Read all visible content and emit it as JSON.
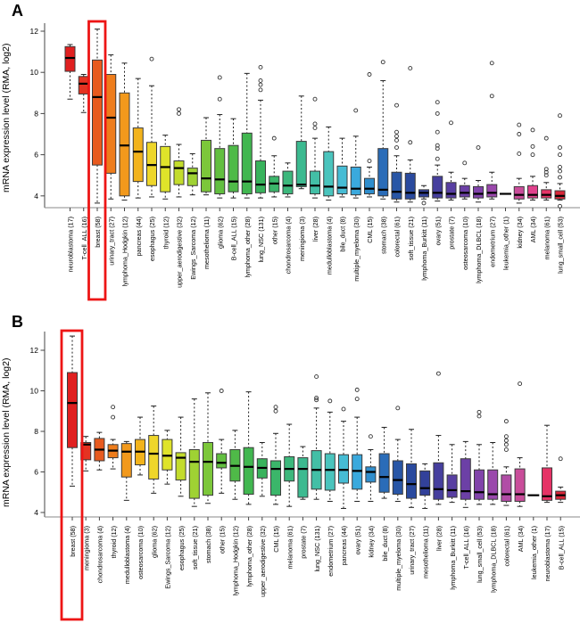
{
  "highlight_color": "#ed1515",
  "palette": [
    "#e02020",
    "#e43322",
    "#e85a1e",
    "#ee7d1c",
    "#f2991c",
    "#f2b31c",
    "#eed62a",
    "#dfe32a",
    "#c3dc2c",
    "#9fd233",
    "#7cc73a",
    "#62bf40",
    "#4fba48",
    "#41b750",
    "#38b35c",
    "#3bb66a",
    "#3cb87c",
    "#3cba90",
    "#43bfa6",
    "#4ac4bd",
    "#46bcd4",
    "#3aa9dd",
    "#2f8ecd",
    "#2a6cb8",
    "#2856a6",
    "#2a4a9e",
    "#32419a",
    "#463f9e",
    "#583fa2",
    "#6c40a6",
    "#8143aa",
    "#9a48ac",
    "#b14da6",
    "#c94d9a",
    "#e0418c",
    "#e53366",
    "#d92638"
  ],
  "chart_data": [
    {
      "type": "boxplot",
      "panel_label": "A",
      "title": "",
      "ylabel": "mRNA expression level (RMA, log2)",
      "xlabel": "",
      "yticks": [
        4,
        6,
        8,
        10,
        12
      ],
      "ylim": [
        3.4,
        12.7
      ],
      "grid": false,
      "legend": "none",
      "highlighted_category": "breast (58)",
      "categories": [
        "neuroblastoma (17)",
        "T-cell_ALL (16)",
        "breast (58)",
        "urinary_tract (27)",
        "lymphoma_Hodgkin (12)",
        "pancreas (44)",
        "esophagus (25)",
        "thyroid (12)",
        "upper_aerodigestive (32)",
        "Ewings_Sarcoma (12)",
        "mesothelioma (11)",
        "glioma (62)",
        "B-cell_ALL (15)",
        "lymphoma_other (28)",
        "lung_NSC (131)",
        "other (15)",
        "chondrosarcoma (4)",
        "meningioma (3)",
        "liver (28)",
        "medulloblastoma (4)",
        "bile_duct (8)",
        "multiple_myeloma (30)",
        "CML (15)",
        "stomach (38)",
        "colorectal (61)",
        "soft_tissue (21)",
        "lymphoma_Burkitt (11)",
        "ovary (51)",
        "prostate (7)",
        "osteosarcoma (10)",
        "lymphoma_DLBCL (18)",
        "endometrium (27)",
        "leukemia_other (1)",
        "kidney (34)",
        "AML (34)",
        "melanoma (61)",
        "lung_small_cell (53)"
      ],
      "boxes": [
        {
          "lo": 8.7,
          "q1": 10.05,
          "med": 10.7,
          "q3": 11.25,
          "hi": 11.35,
          "outliers": []
        },
        {
          "lo": 8.05,
          "q1": 8.95,
          "med": 9.45,
          "q3": 9.8,
          "hi": 9.9,
          "outliers": []
        },
        {
          "lo": 3.65,
          "q1": 5.5,
          "med": 8.8,
          "q3": 10.6,
          "hi": 12.1,
          "outliers": []
        },
        {
          "lo": 3.85,
          "q1": 5.1,
          "med": 7.8,
          "q3": 9.9,
          "hi": 10.85,
          "outliers": []
        },
        {
          "lo": 3.8,
          "q1": 4.0,
          "med": 6.45,
          "q3": 9.0,
          "hi": 10.45,
          "outliers": []
        },
        {
          "lo": 3.9,
          "q1": 4.7,
          "med": 6.15,
          "q3": 7.3,
          "hi": 9.7,
          "outliers": []
        },
        {
          "lo": 3.95,
          "q1": 4.5,
          "med": 5.5,
          "q3": 6.6,
          "hi": 9.35,
          "outliers": [
            10.65
          ]
        },
        {
          "lo": 3.85,
          "q1": 4.2,
          "med": 5.4,
          "q3": 6.4,
          "hi": 6.95,
          "outliers": []
        },
        {
          "lo": 3.95,
          "q1": 4.55,
          "med": 5.35,
          "q3": 5.7,
          "hi": 6.5,
          "outliers": [
            8.2,
            8.0
          ]
        },
        {
          "lo": 4.05,
          "q1": 4.5,
          "med": 5.1,
          "q3": 5.35,
          "hi": 6.05,
          "outliers": []
        },
        {
          "lo": 4.05,
          "q1": 4.2,
          "med": 4.85,
          "q3": 6.7,
          "hi": 7.8,
          "outliers": []
        },
        {
          "lo": 3.9,
          "q1": 4.1,
          "med": 4.8,
          "q3": 6.3,
          "hi": 7.95,
          "outliers": [
            9.75,
            8.7
          ]
        },
        {
          "lo": 3.9,
          "q1": 4.2,
          "med": 4.7,
          "q3": 6.45,
          "hi": 7.75,
          "outliers": []
        },
        {
          "lo": 3.9,
          "q1": 4.1,
          "med": 4.7,
          "q3": 7.05,
          "hi": 9.95,
          "outliers": []
        },
        {
          "lo": 3.9,
          "q1": 4.15,
          "med": 4.55,
          "q3": 5.7,
          "hi": 8.65,
          "outliers": [
            10.25,
            9.6,
            9.4,
            9.15
          ]
        },
        {
          "lo": 3.95,
          "q1": 4.2,
          "med": 4.6,
          "q3": 4.95,
          "hi": 5.95,
          "outliers": [
            6.8
          ]
        },
        {
          "lo": 3.95,
          "q1": 4.1,
          "med": 4.5,
          "q3": 5.2,
          "hi": 5.6,
          "outliers": []
        },
        {
          "lo": 4.35,
          "q1": 4.45,
          "med": 4.55,
          "q3": 6.65,
          "hi": 8.85,
          "outliers": []
        },
        {
          "lo": 3.9,
          "q1": 4.1,
          "med": 4.5,
          "q3": 5.2,
          "hi": 6.8,
          "outliers": [
            8.7,
            7.5,
            7.3
          ]
        },
        {
          "lo": 3.8,
          "q1": 4.0,
          "med": 4.45,
          "q3": 6.15,
          "hi": 7.35,
          "outliers": []
        },
        {
          "lo": 3.95,
          "q1": 4.1,
          "med": 4.4,
          "q3": 5.45,
          "hi": 6.8,
          "outliers": []
        },
        {
          "lo": 3.9,
          "q1": 4.05,
          "med": 4.35,
          "q3": 5.4,
          "hi": 6.9,
          "outliers": [
            8.15
          ]
        },
        {
          "lo": 3.95,
          "q1": 4.1,
          "med": 4.35,
          "q3": 4.85,
          "hi": 5.4,
          "outliers": [
            9.9,
            5.7
          ]
        },
        {
          "lo": 3.85,
          "q1": 4.0,
          "med": 4.3,
          "q3": 6.3,
          "hi": 9.6,
          "outliers": [
            10.5
          ]
        },
        {
          "lo": 3.7,
          "q1": 3.85,
          "med": 4.2,
          "q3": 5.15,
          "hi": 5.95,
          "outliers": [
            8.4,
            7.1,
            6.9,
            6.7,
            6.35
          ]
        },
        {
          "lo": 3.7,
          "q1": 3.85,
          "med": 4.15,
          "q3": 5.1,
          "hi": 5.75,
          "outliers": [
            10.2,
            6.6
          ]
        },
        {
          "lo": 3.85,
          "q1": 3.95,
          "med": 4.15,
          "q3": 4.3,
          "hi": 4.5,
          "outliers": [
            3.65
          ]
        },
        {
          "lo": 3.75,
          "q1": 3.9,
          "med": 4.15,
          "q3": 4.95,
          "hi": 5.5,
          "outliers": [
            8.55,
            8.0,
            7.1,
            6.45,
            6.3,
            5.8
          ]
        },
        {
          "lo": 3.8,
          "q1": 3.9,
          "med": 4.1,
          "q3": 4.65,
          "hi": 5.15,
          "outliers": [
            7.55
          ]
        },
        {
          "lo": 3.85,
          "q1": 3.95,
          "med": 4.15,
          "q3": 4.5,
          "hi": 4.85,
          "outliers": [
            5.6
          ]
        },
        {
          "lo": 3.7,
          "q1": 3.9,
          "med": 4.1,
          "q3": 4.45,
          "hi": 4.75,
          "outliers": [
            6.35
          ]
        },
        {
          "lo": 3.85,
          "q1": 3.95,
          "med": 4.15,
          "q3": 4.55,
          "hi": 5.15,
          "outliers": [
            10.45,
            8.85
          ]
        },
        {
          "lo": 4.1,
          "q1": 4.1,
          "med": 4.1,
          "q3": 4.1,
          "hi": 4.1,
          "outliers": []
        },
        {
          "lo": 3.65,
          "q1": 3.85,
          "med": 4.05,
          "q3": 4.45,
          "hi": 4.85,
          "outliers": [
            7.45,
            7.0,
            6.05
          ]
        },
        {
          "lo": 3.8,
          "q1": 3.9,
          "med": 4.05,
          "q3": 4.5,
          "hi": 4.95,
          "outliers": [
            7.2,
            6.4,
            6.0
          ]
        },
        {
          "lo": 3.8,
          "q1": 3.9,
          "med": 4.05,
          "q3": 4.3,
          "hi": 4.65,
          "outliers": [
            6.8,
            5.3,
            5.15,
            5.0
          ]
        },
        {
          "lo": 3.8,
          "q1": 3.85,
          "med": 4.0,
          "q3": 4.25,
          "hi": 4.6,
          "outliers": [
            7.9,
            6.35,
            6.0,
            5.4,
            5.2,
            4.9,
            3.5
          ]
        }
      ]
    },
    {
      "type": "boxplot",
      "panel_label": "B",
      "title": "",
      "ylabel": "mRNA expression level (RMA, log2)",
      "xlabel": "",
      "yticks": [
        4,
        6,
        8,
        10,
        12
      ],
      "ylim": [
        3.9,
        12.9
      ],
      "grid": false,
      "legend": "none",
      "highlighted_category": "breast (58)",
      "categories": [
        "breast (58)",
        "meningioma (3)",
        "chondrosarcoma (4)",
        "thyroid (12)",
        "medulloblastoma (4)",
        "osteosarcoma (10)",
        "glioma (62)",
        "Ewings_Sarcoma (12)",
        "esophagus (25)",
        "soft_tissue (21)",
        "stomach (38)",
        "other (15)",
        "lymphoma_Hodgkin (12)",
        "lymphoma_other (28)",
        "upper_aerodigestive (32)",
        "CML (15)",
        "melanoma (61)",
        "prostate (7)",
        "lung_NSC (131)",
        "endometrium (27)",
        "pancreas (44)",
        "ovary (51)",
        "kidney (34)",
        "bile_duct (8)",
        "multiple_myeloma (30)",
        "urinary_tract (27)",
        "mesothelioma (11)",
        "liver (28)",
        "lymphoma_Burkitt (11)",
        "T-cell_ALL (16)",
        "lung_small_cell (53)",
        "lymphoma_DLBCL (18)",
        "colorectal (61)",
        "AML (34)",
        "leukemia_other (1)",
        "neuroblastoma (17)",
        "B-cell_ALL (15)"
      ],
      "boxes": [
        {
          "lo": 5.3,
          "q1": 7.2,
          "med": 9.4,
          "q3": 10.9,
          "hi": 12.7,
          "outliers": []
        },
        {
          "lo": 6.05,
          "q1": 6.6,
          "med": 7.35,
          "q3": 7.45,
          "hi": 7.75,
          "outliers": []
        },
        {
          "lo": 6.1,
          "q1": 6.55,
          "med": 7.1,
          "q3": 7.65,
          "hi": 7.95,
          "outliers": []
        },
        {
          "lo": 6.15,
          "q1": 6.7,
          "med": 7.05,
          "q3": 7.35,
          "hi": 7.6,
          "outliers": [
            9.2,
            8.7
          ]
        },
        {
          "lo": 4.6,
          "q1": 5.75,
          "med": 7.0,
          "q3": 7.4,
          "hi": 7.5,
          "outliers": []
        },
        {
          "lo": 5.85,
          "q1": 6.35,
          "med": 7.0,
          "q3": 7.6,
          "hi": 8.7,
          "outliers": []
        },
        {
          "lo": 4.95,
          "q1": 5.65,
          "med": 6.9,
          "q3": 7.8,
          "hi": 9.25,
          "outliers": []
        },
        {
          "lo": 5.4,
          "q1": 6.1,
          "med": 6.8,
          "q3": 7.6,
          "hi": 8.05,
          "outliers": []
        },
        {
          "lo": 4.8,
          "q1": 5.6,
          "med": 6.7,
          "q3": 6.95,
          "hi": 8.7,
          "outliers": []
        },
        {
          "lo": 4.3,
          "q1": 4.7,
          "med": 6.5,
          "q3": 7.1,
          "hi": 9.6,
          "outliers": []
        },
        {
          "lo": 4.45,
          "q1": 4.85,
          "med": 6.5,
          "q3": 7.45,
          "hi": 9.9,
          "outliers": []
        },
        {
          "lo": 4.95,
          "q1": 6.2,
          "med": 6.45,
          "q3": 6.9,
          "hi": 7.6,
          "outliers": [
            10.0
          ]
        },
        {
          "lo": 4.65,
          "q1": 5.55,
          "med": 6.3,
          "q3": 7.1,
          "hi": 8.05,
          "outliers": []
        },
        {
          "lo": 4.4,
          "q1": 4.9,
          "med": 6.25,
          "q3": 7.2,
          "hi": 9.95,
          "outliers": []
        },
        {
          "lo": 4.8,
          "q1": 5.7,
          "med": 6.2,
          "q3": 6.65,
          "hi": 7.45,
          "outliers": []
        },
        {
          "lo": 4.4,
          "q1": 4.85,
          "med": 6.15,
          "q3": 6.55,
          "hi": 7.9,
          "outliers": [
            9.2,
            9.0
          ]
        },
        {
          "lo": 4.3,
          "q1": 5.55,
          "med": 6.15,
          "q3": 6.75,
          "hi": 8.35,
          "outliers": []
        },
        {
          "lo": 4.65,
          "q1": 4.75,
          "med": 6.15,
          "q3": 6.7,
          "hi": 7.25,
          "outliers": []
        },
        {
          "lo": 4.65,
          "q1": 5.15,
          "med": 6.1,
          "q3": 7.05,
          "hi": 9.15,
          "outliers": [
            10.7,
            9.65,
            9.55
          ]
        },
        {
          "lo": 4.55,
          "q1": 5.1,
          "med": 6.1,
          "q3": 6.9,
          "hi": 8.95,
          "outliers": [
            9.5
          ]
        },
        {
          "lo": 4.2,
          "q1": 5.45,
          "med": 6.1,
          "q3": 6.85,
          "hi": 8.5,
          "outliers": [
            9.1
          ]
        },
        {
          "lo": 4.55,
          "q1": 5.15,
          "med": 6.05,
          "q3": 6.85,
          "hi": 8.7,
          "outliers": [
            10.05,
            9.6
          ]
        },
        {
          "lo": 4.55,
          "q1": 5.5,
          "med": 6.0,
          "q3": 6.25,
          "hi": 7.1,
          "outliers": [
            7.75
          ]
        },
        {
          "lo": 4.7,
          "q1": 5.0,
          "med": 5.75,
          "q3": 6.9,
          "hi": 8.2,
          "outliers": []
        },
        {
          "lo": 4.55,
          "q1": 4.9,
          "med": 5.6,
          "q3": 6.55,
          "hi": 7.6,
          "outliers": [
            9.15
          ]
        },
        {
          "lo": 4.25,
          "q1": 4.7,
          "med": 5.4,
          "q3": 6.4,
          "hi": 8.1,
          "outliers": []
        },
        {
          "lo": 4.2,
          "q1": 4.85,
          "med": 5.2,
          "q3": 6.05,
          "hi": 6.4,
          "outliers": []
        },
        {
          "lo": 4.4,
          "q1": 4.65,
          "med": 5.15,
          "q3": 6.45,
          "hi": 7.8,
          "outliers": [
            10.85
          ]
        },
        {
          "lo": 4.5,
          "q1": 4.75,
          "med": 5.1,
          "q3": 5.85,
          "hi": 7.35,
          "outliers": []
        },
        {
          "lo": 4.25,
          "q1": 4.65,
          "med": 5.05,
          "q3": 6.65,
          "hi": 7.5,
          "outliers": []
        },
        {
          "lo": 4.4,
          "q1": 4.65,
          "med": 5.0,
          "q3": 6.1,
          "hi": 7.35,
          "outliers": [
            8.95,
            8.75
          ]
        },
        {
          "lo": 4.4,
          "q1": 4.65,
          "med": 4.9,
          "q3": 6.1,
          "hi": 7.45,
          "outliers": []
        },
        {
          "lo": 4.35,
          "q1": 4.55,
          "med": 4.9,
          "q3": 5.85,
          "hi": 6.25,
          "outliers": [
            8.5,
            7.75,
            7.55,
            7.35,
            7.1
          ]
        },
        {
          "lo": 4.3,
          "q1": 4.55,
          "med": 4.9,
          "q3": 6.15,
          "hi": 6.7,
          "outliers": [
            10.35
          ]
        },
        {
          "lo": 4.85,
          "q1": 4.85,
          "med": 4.85,
          "q3": 4.85,
          "hi": 4.85,
          "outliers": []
        },
        {
          "lo": 4.5,
          "q1": 4.6,
          "med": 4.8,
          "q3": 6.2,
          "hi": 8.3,
          "outliers": []
        },
        {
          "lo": 4.5,
          "q1": 4.65,
          "med": 4.85,
          "q3": 5.05,
          "hi": 5.25,
          "outliers": [
            6.65
          ]
        }
      ]
    }
  ]
}
